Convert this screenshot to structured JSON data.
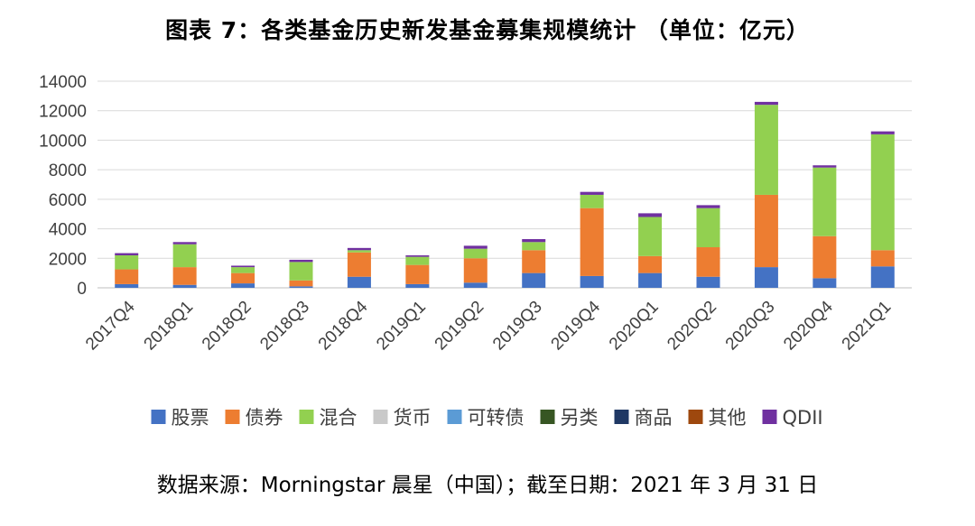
{
  "title": "图表 7：各类基金历史新发基金募集规模统计 （单位：亿元）",
  "source": "数据来源：Morningstar 晨星（中国）；截至日期：2021 年 3 月 31 日",
  "chart_data": {
    "type": "bar",
    "stacked": true,
    "categories": [
      "2017Q4",
      "2018Q1",
      "2018Q2",
      "2018Q3",
      "2018Q4",
      "2019Q1",
      "2019Q2",
      "2019Q3",
      "2019Q4",
      "2020Q1",
      "2020Q2",
      "2020Q3",
      "2020Q4",
      "2021Q1"
    ],
    "ylim": [
      0,
      14000
    ],
    "yticks": [
      0,
      2000,
      4000,
      6000,
      8000,
      10000,
      12000,
      14000
    ],
    "grid": true,
    "legend_position": "bottom",
    "series": [
      {
        "name": "股票",
        "color": "#4472C4",
        "values": [
          250,
          200,
          300,
          100,
          750,
          250,
          350,
          1000,
          800,
          1000,
          750,
          1400,
          650,
          1450
        ]
      },
      {
        "name": "债券",
        "color": "#ED7D31",
        "values": [
          1000,
          1200,
          700,
          400,
          1650,
          1300,
          1650,
          1550,
          4600,
          1150,
          2000,
          4900,
          2850,
          1100
        ]
      },
      {
        "name": "混合",
        "color": "#92D050",
        "values": [
          950,
          1550,
          400,
          1250,
          150,
          550,
          650,
          550,
          900,
          2650,
          2650,
          6100,
          4650,
          7850
        ]
      },
      {
        "name": "货币",
        "color": "#C9C9C9",
        "values": [
          0,
          0,
          0,
          0,
          0,
          0,
          0,
          0,
          0,
          0,
          0,
          0,
          0,
          0
        ]
      },
      {
        "name": "可转债",
        "color": "#5B9BD5",
        "values": [
          0,
          0,
          0,
          0,
          0,
          0,
          0,
          0,
          0,
          0,
          0,
          0,
          0,
          0
        ]
      },
      {
        "name": "另类",
        "color": "#375623",
        "values": [
          0,
          0,
          0,
          0,
          0,
          0,
          0,
          0,
          0,
          0,
          0,
          0,
          0,
          0
        ]
      },
      {
        "name": "商品",
        "color": "#1F3864",
        "values": [
          0,
          0,
          0,
          0,
          0,
          0,
          0,
          0,
          0,
          0,
          0,
          0,
          0,
          0
        ]
      },
      {
        "name": "其他",
        "color": "#9E480E",
        "values": [
          0,
          0,
          0,
          0,
          0,
          0,
          0,
          0,
          0,
          0,
          0,
          0,
          0,
          0
        ]
      },
      {
        "name": "QDII",
        "color": "#7030A0",
        "values": [
          150,
          150,
          100,
          150,
          150,
          100,
          200,
          200,
          200,
          250,
          200,
          200,
          150,
          200
        ]
      }
    ]
  }
}
